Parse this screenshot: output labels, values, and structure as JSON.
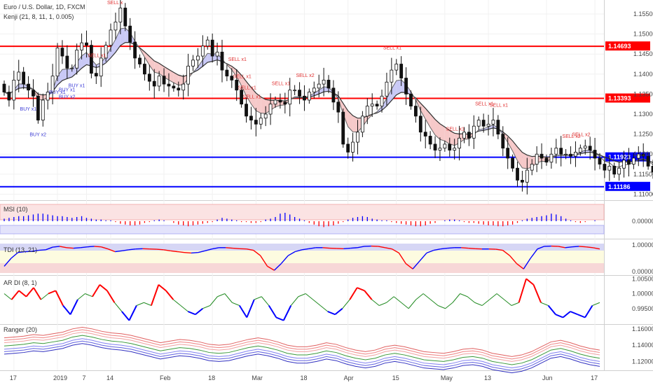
{
  "header": {
    "title": "Euro / U.S. Dollar, 1D, FXCM",
    "study": "Kenji (21, 8, 11, 1, 0.005)"
  },
  "colors": {
    "up": "#ffffff",
    "down": "#111111",
    "red": "#ff0000",
    "blue": "#0000ff",
    "ma": "#4d6a4d",
    "bear_fill": "#f6c9c9",
    "bull_fill": "#c9c9f6",
    "tdi_band_blue": "#d6d6f5",
    "tdi_band_yellow": "#fdfbe0",
    "tdi_band_red": "#f7d7d7",
    "green": "#228b22"
  },
  "chart_data": [
    {
      "type": "candlestick",
      "panel": "price",
      "title": "Euro / U.S. Dollar, 1D, FXCM",
      "yrange": [
        1.1085,
        1.1585
      ],
      "yticks": [
        "1.15500",
        "1.15000",
        "1.14500",
        "1.14000",
        "1.13500",
        "1.13000",
        "1.12500",
        "1.12000",
        "1.11500",
        "1.11000"
      ],
      "levels": [
        {
          "label": "1.14693",
          "value": 1.14693,
          "color": "#ff0000"
        },
        {
          "label": "1.13393",
          "value": 1.13393,
          "color": "#ff0000"
        },
        {
          "label": "1.11923",
          "value": 1.11923,
          "color": "#0000ff"
        },
        {
          "label": "1.11186",
          "value": 1.11186,
          "color": "#0000ff"
        }
      ],
      "close": [
        1.1355,
        1.1335,
        1.1385,
        1.1405,
        1.1375,
        1.136,
        1.1345,
        1.1285,
        1.1335,
        1.1355,
        1.1395,
        1.1465,
        1.1445,
        1.1415,
        1.1415,
        1.146,
        1.1478,
        1.1472,
        1.1402,
        1.1395,
        1.144,
        1.1472,
        1.151,
        1.153,
        1.1565,
        1.152,
        1.148,
        1.144,
        1.1425,
        1.14,
        1.1382,
        1.137,
        1.1395,
        1.1375,
        1.137,
        1.1365,
        1.136,
        1.1375,
        1.142,
        1.1435,
        1.1445,
        1.147,
        1.1485,
        1.1445,
        1.1455,
        1.141,
        1.1395,
        1.1385,
        1.136,
        1.1325,
        1.1295,
        1.1285,
        1.1275,
        1.129,
        1.13,
        1.1325,
        1.1335,
        1.133,
        1.1325,
        1.136,
        1.136,
        1.1345,
        1.1335,
        1.1355,
        1.1365,
        1.1375,
        1.1385,
        1.1365,
        1.133,
        1.1305,
        1.1225,
        1.1205,
        1.123,
        1.1255,
        1.1295,
        1.132,
        1.1325,
        1.132,
        1.1345,
        1.138,
        1.141,
        1.1425,
        1.139,
        1.135,
        1.132,
        1.1295,
        1.1255,
        1.1245,
        1.1225,
        1.121,
        1.1215,
        1.1225,
        1.121,
        1.1215,
        1.124,
        1.1255,
        1.124,
        1.127,
        1.1285,
        1.127,
        1.1275,
        1.1285,
        1.125,
        1.1215,
        1.119,
        1.1165,
        1.1135,
        1.113,
        1.116,
        1.1175,
        1.12,
        1.119,
        1.118,
        1.12,
        1.1215,
        1.12,
        1.12,
        1.1195,
        1.1205,
        1.1215,
        1.122,
        1.121,
        1.119,
        1.1175,
        1.116,
        1.117,
        1.115,
        1.1165,
        1.1185,
        1.1175,
        1.119,
        1.12,
        1.1195,
        1.117,
        1.1155,
        1.1145,
        1.115,
        1.117,
        1.1215,
        1.127,
        1.131,
        1.133,
        1.1325,
        1.1305,
        1.1295,
        1.134,
        1.132,
        1.128,
        1.125,
        1.121,
        1.1205,
        1.1215
      ],
      "signals": [
        {
          "i": 5,
          "label": "BUY x1",
          "side": "buy"
        },
        {
          "i": 7,
          "label": "BUY x2",
          "side": "buy"
        },
        {
          "i": 11,
          "label": "BUY x1",
          "side": "buy"
        },
        {
          "i": 13,
          "label": "BUY x1",
          "side": "buy"
        },
        {
          "i": 13,
          "label": "BUY x2",
          "side": "buy"
        },
        {
          "i": 15,
          "label": "BUY x1",
          "side": "buy"
        },
        {
          "i": 19,
          "label": "SELL x1",
          "side": "sell"
        },
        {
          "i": 23,
          "label": "SELL x",
          "side": "sell"
        },
        {
          "i": 48,
          "label": "SELL x1",
          "side": "sell"
        },
        {
          "i": 49,
          "label": "SELL x1",
          "side": "sell"
        },
        {
          "i": 50,
          "label": "SELL x1",
          "side": "sell"
        },
        {
          "i": 51,
          "label": "SELL x1",
          "side": "sell"
        },
        {
          "i": 57,
          "label": "SELL x1",
          "side": "sell"
        },
        {
          "i": 62,
          "label": "SELL x2",
          "side": "sell"
        },
        {
          "i": 80,
          "label": "SELL x1",
          "side": "sell"
        },
        {
          "i": 93,
          "label": "SELL x1",
          "side": "sell"
        },
        {
          "i": 99,
          "label": "SELL x1",
          "side": "sell"
        },
        {
          "i": 102,
          "label": "SELL x1",
          "side": "sell"
        },
        {
          "i": 117,
          "label": "SELL x2",
          "side": "sell"
        },
        {
          "i": 119,
          "label": "SELL x2",
          "side": "sell"
        }
      ]
    },
    {
      "type": "bar",
      "panel": "msi",
      "title": "MSI (10)",
      "yticks": [
        "0.00000"
      ],
      "values": [
        0.3,
        0.4,
        0.5,
        0.6,
        0.6,
        0.7,
        0.8,
        0.9,
        0.9,
        0.8,
        0.7,
        0.6,
        0.6,
        0.5,
        0.4,
        0.5,
        0.6,
        0.4,
        0.3,
        0.2,
        0.2,
        0.1,
        0.1,
        -0.1,
        -0.3,
        -0.4,
        -0.5,
        -0.5,
        -0.4,
        -0.2,
        -0.1,
        0.1,
        0.2,
        0.1,
        0.0,
        -0.2,
        -0.4,
        -0.5,
        -0.6,
        -0.5,
        -0.4,
        -0.3,
        -0.2,
        -0.1,
        0.2,
        0.4,
        0.3,
        0.2,
        0.1,
        -0.1,
        -0.1,
        -0.2,
        -0.2,
        -0.1,
        0.2,
        0.3,
        0.5,
        0.9,
        1.0,
        0.8,
        0.5,
        0.3,
        0.1,
        -0.2,
        -0.4,
        -0.6,
        -0.7,
        -0.6,
        -0.5,
        -0.3,
        -0.1,
        0.2,
        0.4,
        0.5,
        0.6,
        0.5,
        0.3,
        0.2,
        0.1,
        0.1,
        -0.1,
        -0.2,
        -0.3,
        -0.4,
        -0.5,
        -0.6,
        -0.6,
        -0.5,
        -0.3,
        -0.2,
        0.0,
        0.1,
        0.2,
        0.2,
        0.1,
        -0.1,
        -0.2,
        -0.2,
        -0.3,
        -0.4,
        -0.5,
        -0.5,
        -0.6,
        -0.6,
        -0.5,
        -0.4,
        -0.2,
        0.1,
        0.3,
        0.4,
        0.5,
        0.6,
        0.7,
        0.9,
        0.8,
        0.6,
        0.3,
        0.1,
        -0.1,
        -0.2,
        -0.1,
        0.0,
        0.1
      ]
    },
    {
      "type": "line",
      "panel": "tdi",
      "title": "TDI (13, 21)",
      "yticks": [
        "1.00000",
        "0.00000"
      ],
      "values": [
        0.2,
        0.5,
        0.72,
        0.75,
        0.76,
        0.8,
        0.82,
        0.92,
        0.95,
        0.9,
        0.88,
        0.9,
        0.93,
        0.95,
        0.93,
        0.85,
        0.75,
        0.78,
        0.82,
        0.85,
        0.86,
        0.85,
        0.84,
        0.82,
        0.78,
        0.75,
        0.72,
        0.7,
        0.72,
        0.78,
        0.85,
        0.9,
        0.9,
        0.88,
        0.86,
        0.85,
        0.8,
        0.6,
        0.2,
        0.05,
        0.3,
        0.6,
        0.75,
        0.82,
        0.86,
        0.9,
        0.9,
        0.88,
        0.87,
        0.86,
        0.88,
        0.9,
        0.95,
        0.96,
        0.95,
        0.9,
        0.85,
        0.7,
        0.3,
        0.1,
        0.4,
        0.7,
        0.8,
        0.85,
        0.88,
        0.9,
        0.9,
        0.88,
        0.86,
        0.85,
        0.85,
        0.84,
        0.8,
        0.6,
        0.3,
        0.1,
        0.5,
        0.85,
        0.95,
        0.96,
        0.95,
        0.9,
        0.93,
        0.95,
        0.93,
        0.9,
        0.85
      ]
    },
    {
      "type": "line",
      "panel": "ardi",
      "title": "AR DI (8, 1)",
      "yticks": [
        "1.00500",
        "1.00000",
        "0.99500"
      ],
      "values": [
        1.0,
        0.998,
        1.001,
        0.999,
        1.002,
        0.998,
        1.0,
        1.001,
        0.996,
        0.993,
        0.998,
        1.0,
        0.999,
        1.003,
        1.001,
        0.997,
        0.994,
        0.991,
        0.996,
        0.997,
        0.996,
        1.003,
        1.001,
        0.998,
        0.996,
        0.994,
        0.993,
        0.995,
        0.996,
        0.999,
        1.0,
        0.997,
        0.996,
        0.992,
        0.998,
        0.999,
        0.996,
        0.992,
        0.991,
        0.996,
        0.999,
        1.0,
        0.998,
        0.996,
        0.994,
        0.993,
        0.995,
        0.998,
        1.002,
        1.001,
        0.998,
        0.996,
        0.997,
        0.999,
        0.997,
        0.995,
        0.998,
        1.0,
        0.998,
        0.996,
        0.995,
        0.997,
        1.0,
        0.999,
        0.997,
        0.996,
        0.998,
        1.0,
        0.998,
        0.996,
        0.997,
        1.005,
        1.003,
        0.997,
        0.996,
        0.993,
        0.992,
        0.994,
        0.993,
        0.992,
        0.996,
        0.997
      ]
    },
    {
      "type": "line",
      "panel": "ranger",
      "title": "Ranger (20)",
      "yticks": [
        "1.16000",
        "1.14000",
        "1.12000"
      ],
      "values": [
        1.139,
        1.14,
        1.141,
        1.143,
        1.142,
        1.144,
        1.146,
        1.15,
        1.152,
        1.15,
        1.147,
        1.145,
        1.144,
        1.142,
        1.139,
        1.136,
        1.133,
        1.135,
        1.137,
        1.136,
        1.134,
        1.131,
        1.13,
        1.131,
        1.134,
        1.137,
        1.139,
        1.137,
        1.134,
        1.13,
        1.128,
        1.128,
        1.13,
        1.133,
        1.131,
        1.127,
        1.124,
        1.122,
        1.124,
        1.128,
        1.13,
        1.128,
        1.125,
        1.122,
        1.121,
        1.12,
        1.122,
        1.125,
        1.126,
        1.124,
        1.12,
        1.118,
        1.116,
        1.118,
        1.122,
        1.128,
        1.134,
        1.136,
        1.133,
        1.129,
        1.126,
        1.124
      ]
    }
  ],
  "xaxis": {
    "labels": [
      {
        "i": 2,
        "t": "17"
      },
      {
        "i": 11,
        "t": "2019"
      },
      {
        "i": 17,
        "t": "7"
      },
      {
        "i": 22,
        "t": "14"
      },
      {
        "i": 33,
        "t": "Feb"
      },
      {
        "i": 43,
        "t": "18"
      },
      {
        "i": 52,
        "t": "Mar"
      },
      {
        "i": 62,
        "t": "18"
      },
      {
        "i": 71,
        "t": "Apr"
      },
      {
        "i": 81,
        "t": "15"
      },
      {
        "i": 91,
        "t": "May"
      },
      {
        "i": 100,
        "t": "13"
      },
      {
        "i": 112,
        "t": "Jun"
      },
      {
        "i": 122,
        "t": "17"
      }
    ]
  }
}
